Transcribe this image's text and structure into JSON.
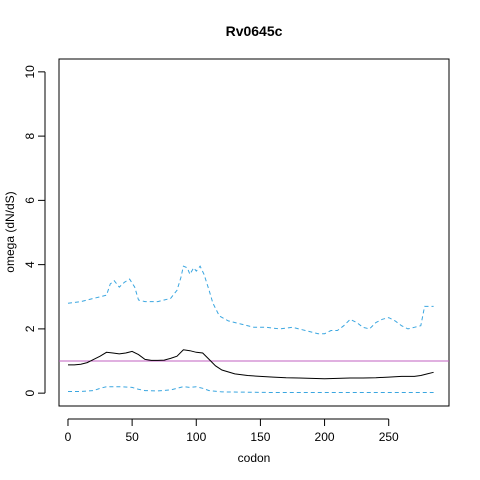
{
  "chart_data": {
    "type": "line",
    "title": "Rv0645c",
    "xlabel": "codon",
    "ylabel": "omega (dN/dS)",
    "xlim": [
      -7,
      297
    ],
    "ylim": [
      -0.4,
      10.4
    ],
    "xticks": [
      0,
      50,
      100,
      150,
      200,
      250
    ],
    "yticks": [
      0,
      2,
      4,
      6,
      8,
      10
    ],
    "grid": false,
    "legend": "none",
    "reference_line": {
      "y": 1,
      "color": "#c060c0"
    },
    "series": [
      {
        "role": "upper",
        "color": "#3aa6e0",
        "dash": "dashed",
        "points": [
          [
            0,
            2.8
          ],
          [
            5,
            2.82
          ],
          [
            10,
            2.85
          ],
          [
            15,
            2.9
          ],
          [
            20,
            2.95
          ],
          [
            25,
            3.0
          ],
          [
            30,
            3.05
          ],
          [
            33,
            3.4
          ],
          [
            36,
            3.5
          ],
          [
            40,
            3.3
          ],
          [
            44,
            3.45
          ],
          [
            48,
            3.55
          ],
          [
            52,
            3.3
          ],
          [
            55,
            2.9
          ],
          [
            60,
            2.85
          ],
          [
            65,
            2.85
          ],
          [
            70,
            2.85
          ],
          [
            75,
            2.9
          ],
          [
            80,
            2.95
          ],
          [
            85,
            3.2
          ],
          [
            88,
            3.6
          ],
          [
            90,
            3.95
          ],
          [
            93,
            3.9
          ],
          [
            95,
            3.7
          ],
          [
            98,
            3.9
          ],
          [
            100,
            3.8
          ],
          [
            103,
            3.95
          ],
          [
            106,
            3.7
          ],
          [
            110,
            3.2
          ],
          [
            113,
            2.8
          ],
          [
            118,
            2.4
          ],
          [
            125,
            2.25
          ],
          [
            135,
            2.15
          ],
          [
            145,
            2.05
          ],
          [
            155,
            2.05
          ],
          [
            165,
            2.0
          ],
          [
            175,
            2.05
          ],
          [
            180,
            2.0
          ],
          [
            185,
            1.95
          ],
          [
            190,
            1.9
          ],
          [
            195,
            1.85
          ],
          [
            200,
            1.85
          ],
          [
            205,
            1.95
          ],
          [
            210,
            1.95
          ],
          [
            215,
            2.1
          ],
          [
            220,
            2.3
          ],
          [
            225,
            2.2
          ],
          [
            230,
            2.05
          ],
          [
            235,
            2.0
          ],
          [
            240,
            2.2
          ],
          [
            245,
            2.3
          ],
          [
            250,
            2.35
          ],
          [
            255,
            2.25
          ],
          [
            260,
            2.1
          ],
          [
            265,
            2.0
          ],
          [
            270,
            2.05
          ],
          [
            275,
            2.1
          ],
          [
            278,
            2.7
          ],
          [
            285,
            2.7
          ]
        ]
      },
      {
        "role": "mean",
        "color": "#000000",
        "dash": "solid",
        "points": [
          [
            0,
            0.88
          ],
          [
            5,
            0.88
          ],
          [
            10,
            0.9
          ],
          [
            15,
            0.95
          ],
          [
            20,
            1.05
          ],
          [
            25,
            1.15
          ],
          [
            30,
            1.27
          ],
          [
            35,
            1.25
          ],
          [
            40,
            1.22
          ],
          [
            45,
            1.25
          ],
          [
            50,
            1.3
          ],
          [
            55,
            1.2
          ],
          [
            60,
            1.05
          ],
          [
            65,
            1.02
          ],
          [
            70,
            1.02
          ],
          [
            75,
            1.03
          ],
          [
            80,
            1.08
          ],
          [
            85,
            1.15
          ],
          [
            90,
            1.35
          ],
          [
            95,
            1.32
          ],
          [
            100,
            1.27
          ],
          [
            105,
            1.25
          ],
          [
            110,
            1.05
          ],
          [
            115,
            0.85
          ],
          [
            120,
            0.72
          ],
          [
            130,
            0.6
          ],
          [
            140,
            0.55
          ],
          [
            150,
            0.52
          ],
          [
            160,
            0.5
          ],
          [
            170,
            0.48
          ],
          [
            180,
            0.47
          ],
          [
            190,
            0.46
          ],
          [
            200,
            0.45
          ],
          [
            210,
            0.46
          ],
          [
            220,
            0.47
          ],
          [
            230,
            0.47
          ],
          [
            240,
            0.48
          ],
          [
            250,
            0.5
          ],
          [
            260,
            0.52
          ],
          [
            270,
            0.52
          ],
          [
            275,
            0.55
          ],
          [
            280,
            0.6
          ],
          [
            285,
            0.65
          ]
        ]
      },
      {
        "role": "lower",
        "color": "#3aa6e0",
        "dash": "dashed",
        "points": [
          [
            0,
            0.05
          ],
          [
            10,
            0.05
          ],
          [
            20,
            0.08
          ],
          [
            25,
            0.15
          ],
          [
            30,
            0.2
          ],
          [
            40,
            0.2
          ],
          [
            50,
            0.18
          ],
          [
            55,
            0.12
          ],
          [
            60,
            0.08
          ],
          [
            70,
            0.07
          ],
          [
            80,
            0.1
          ],
          [
            85,
            0.15
          ],
          [
            90,
            0.2
          ],
          [
            95,
            0.18
          ],
          [
            100,
            0.2
          ],
          [
            105,
            0.15
          ],
          [
            110,
            0.08
          ],
          [
            120,
            0.04
          ],
          [
            140,
            0.03
          ],
          [
            160,
            0.02
          ],
          [
            180,
            0.02
          ],
          [
            200,
            0.02
          ],
          [
            220,
            0.02
          ],
          [
            240,
            0.02
          ],
          [
            260,
            0.02
          ],
          [
            285,
            0.02
          ]
        ]
      }
    ]
  }
}
